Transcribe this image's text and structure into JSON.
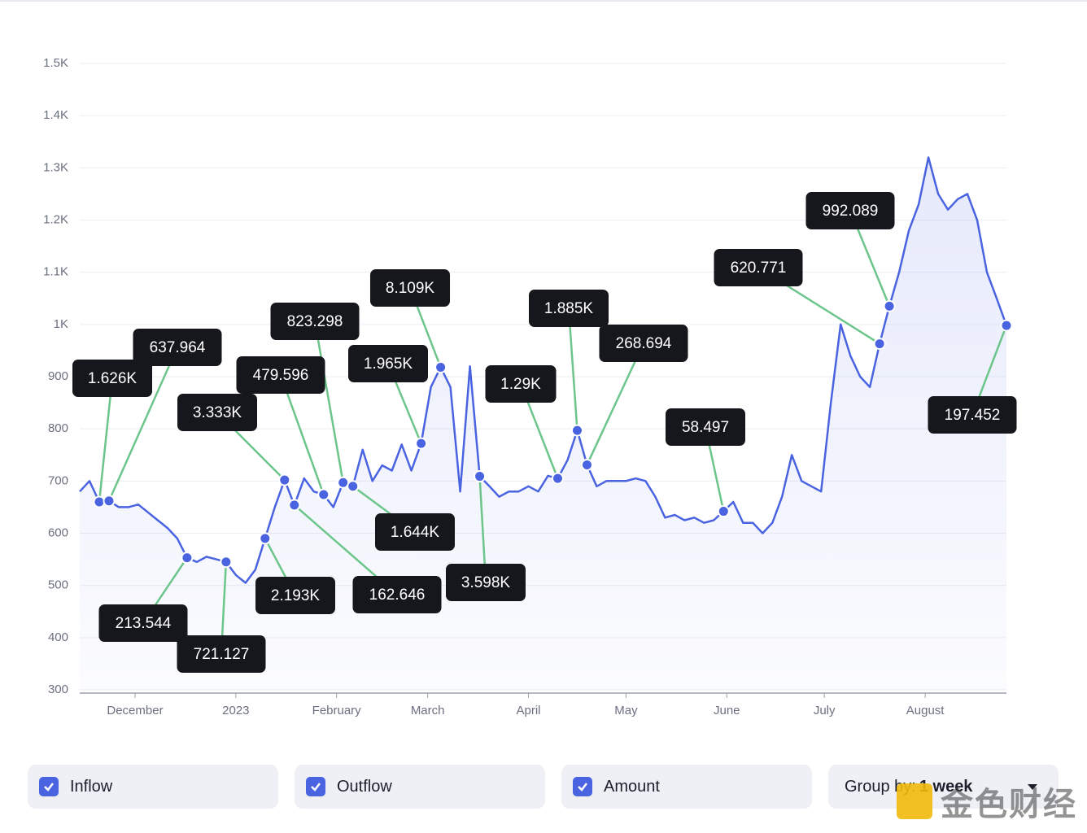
{
  "chart_data": {
    "type": "line",
    "ylim": [
      300,
      1500
    ],
    "yticks": [
      300,
      400,
      500,
      600,
      700,
      800,
      900,
      {
        "value": 1000,
        "label": "1K"
      },
      {
        "value": 1100,
        "label": "1.1K"
      },
      {
        "value": 1200,
        "label": "1.2K"
      },
      {
        "value": 1300,
        "label": "1.3K"
      },
      {
        "value": 1400,
        "label": "1.4K"
      },
      {
        "value": 1500,
        "label": "1.5K"
      }
    ],
    "xlim": [
      0,
      95
    ],
    "xticks": [
      {
        "value": 5.67,
        "label": "December"
      },
      {
        "value": 16,
        "label": "2023"
      },
      {
        "value": 26.33,
        "label": "February"
      },
      {
        "value": 35.67,
        "label": "March"
      },
      {
        "value": 46,
        "label": "April"
      },
      {
        "value": 56,
        "label": "May"
      },
      {
        "value": 66.33,
        "label": "June"
      },
      {
        "value": 76.33,
        "label": "July"
      },
      {
        "value": 86.67,
        "label": "August"
      }
    ],
    "grid": true,
    "series": [
      {
        "color": "#4a63e0",
        "values": [
          680,
          700,
          660,
          662,
          650,
          650,
          655,
          640,
          625,
          610,
          590,
          553,
          545,
          555,
          550,
          545,
          520,
          505,
          530,
          590,
          650,
          702,
          654,
          705,
          680,
          674,
          650,
          697,
          690,
          760,
          700,
          730,
          720,
          770,
          720,
          772,
          880,
          918,
          880,
          680,
          920,
          709,
          690,
          670,
          680,
          680,
          690,
          680,
          710,
          705,
          740,
          797,
          731,
          690,
          700,
          700,
          700,
          705,
          700,
          670,
          630,
          635,
          625,
          630,
          620,
          625,
          642,
          660,
          620,
          620,
          600,
          620,
          670,
          750,
          700,
          690,
          680,
          850,
          1000,
          940,
          900,
          880,
          963,
          1035,
          1100,
          1180,
          1230,
          1320,
          1250,
          1220,
          1240,
          1250,
          1200,
          1100,
          1050,
          998
        ]
      }
    ],
    "annotations": [
      {
        "x": 2,
        "label": "1.626K"
      },
      {
        "x": 3,
        "label": "637.964"
      },
      {
        "x": 11,
        "label": "213.544"
      },
      {
        "x": 15,
        "label": "721.127"
      },
      {
        "x": 19,
        "label": "2.193K"
      },
      {
        "x": 21,
        "label": "3.333K"
      },
      {
        "x": 22,
        "label": "162.646"
      },
      {
        "x": 25,
        "label": "479.596"
      },
      {
        "x": 27,
        "label": "823.298"
      },
      {
        "x": 28,
        "label": "1.644K"
      },
      {
        "x": 35,
        "label": "1.965K"
      },
      {
        "x": 37,
        "label": "8.109K"
      },
      {
        "x": 41,
        "label": "3.598K"
      },
      {
        "x": 49,
        "label": "1.29K"
      },
      {
        "x": 51,
        "label": "1.885K"
      },
      {
        "x": 52,
        "label": "268.694"
      },
      {
        "x": 66,
        "label": "58.497"
      },
      {
        "x": 82,
        "label": "620.771"
      },
      {
        "x": 83,
        "label": "992.089"
      },
      {
        "x": 95,
        "label": "197.452"
      }
    ]
  },
  "controls": {
    "inflow": "Inflow",
    "outflow": "Outflow",
    "amount": "Amount",
    "group_by_label": "Group by:",
    "group_by_value": "1 week"
  },
  "brand": "金色财经"
}
